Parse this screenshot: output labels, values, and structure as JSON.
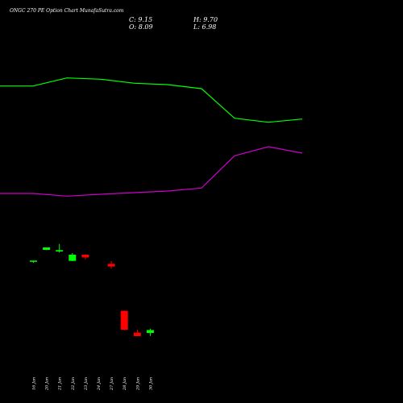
{
  "header": {
    "title": "ONGC 270  PE Option  Chart MunafaSutra.com",
    "close": "C: 9.15",
    "high": "H: 9.70",
    "open": "O: 8.09",
    "low": "L: 6.98"
  },
  "chart_data": {
    "type": "candlestick",
    "categories": [
      "16 Jan",
      "20 Jan",
      "21 Jan",
      "22 Jan",
      "23 Jan",
      "24 Jan",
      "27 Jan",
      "28 Jan",
      "29 Jan",
      "30 Jan"
    ],
    "candles": [
      {
        "date": "16 Jan",
        "open": 34.6,
        "high": 35.0,
        "low": 34.2,
        "close": 35.0,
        "color": "#00ff00"
      },
      {
        "date": "20 Jan",
        "open": 39.0,
        "high": 39.9,
        "low": 38.9,
        "close": 39.9,
        "color": "#00ff00"
      },
      {
        "date": "21 Jan",
        "open": 38.4,
        "high": 41.2,
        "low": 38.0,
        "close": 38.9,
        "color": "#00ff00"
      },
      {
        "date": "22 Jan",
        "open": 34.9,
        "high": 37.8,
        "low": 34.8,
        "close": 37.2,
        "color": "#00ff00"
      },
      {
        "date": "23 Jan",
        "open": 37.2,
        "high": 37.4,
        "low": 35.5,
        "close": 36.2,
        "color": "#ff0000"
      },
      {
        "date": "24 Jan",
        "open": null,
        "high": null,
        "low": null,
        "close": null,
        "color": ""
      },
      {
        "date": "27 Jan",
        "open": 33.8,
        "high": 34.8,
        "low": 32.0,
        "close": 32.8,
        "color": "#ff0000"
      },
      {
        "date": "28 Jan",
        "open": 16.3,
        "high": 16.5,
        "low": 9.0,
        "close": 9.3,
        "color": "#ff0000"
      },
      {
        "date": "29 Jan",
        "open": 8.2,
        "high": 9.3,
        "low": 6.9,
        "close": 6.9,
        "color": "#ff0000"
      },
      {
        "date": "30 Jan",
        "open": 8.09,
        "high": 9.7,
        "low": 6.98,
        "close": 9.15,
        "color": "#00ff00"
      }
    ],
    "series": [
      {
        "color": "#00ff00",
        "values": [
          100,
          100,
          103,
          102.5,
          101,
          100.5,
          99,
          88,
          86.5,
          87.7
        ]
      },
      {
        "color": "#cc00cc",
        "values": [
          60,
          60,
          59,
          59.7,
          60.3,
          60.9,
          62,
          74,
          77.4,
          75
        ]
      }
    ],
    "ylim": [
      0,
      120
    ],
    "grid": false,
    "background": "#000000"
  }
}
